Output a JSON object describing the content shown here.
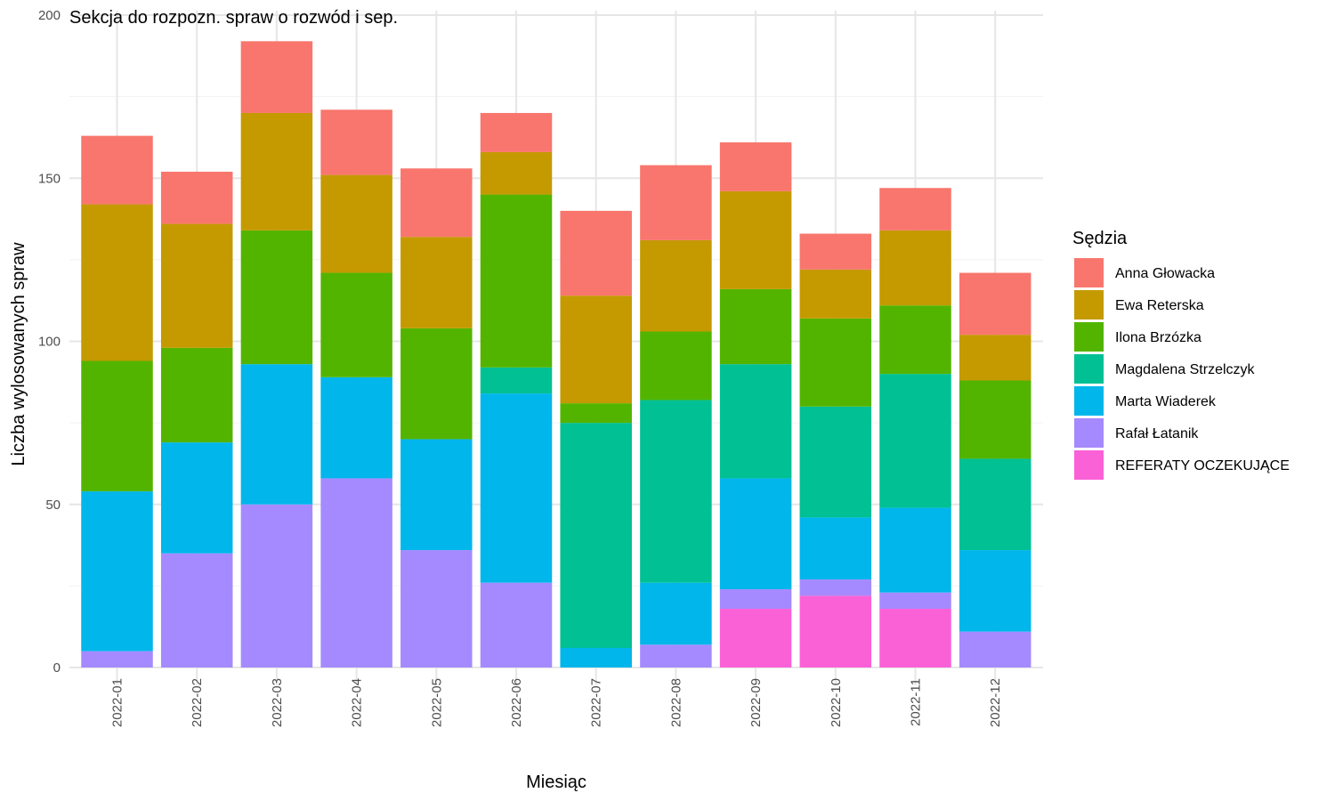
{
  "chart_data": {
    "type": "bar",
    "stacked": true,
    "title": "Sekcja do rozpozn. spraw o rozwód i sep.",
    "xlabel": "Miesiąc",
    "ylabel": "Liczba wylosowanych spraw",
    "ylim": [
      0,
      200
    ],
    "yticks": [
      "0",
      "50",
      "100",
      "150",
      "200"
    ],
    "grid": true,
    "legend": {
      "title": "Sędzia",
      "position": "right"
    },
    "categories": [
      "2022-01",
      "2022-02",
      "2022-03",
      "2022-04",
      "2022-05",
      "2022-06",
      "2022-07",
      "2022-08",
      "2022-09",
      "2022-10",
      "2022-11",
      "2022-12"
    ],
    "series": [
      {
        "name": "Anna Głowacka",
        "color": "#F8766D",
        "values": [
          21,
          16,
          22,
          20,
          21,
          12,
          26,
          23,
          15,
          11,
          13,
          19
        ]
      },
      {
        "name": "Ewa Reterska",
        "color": "#C49A00",
        "values": [
          48,
          38,
          36,
          30,
          28,
          13,
          33,
          28,
          30,
          15,
          23,
          14
        ]
      },
      {
        "name": "Ilona Brzózka",
        "color": "#53B400",
        "values": [
          40,
          29,
          41,
          32,
          34,
          53,
          6,
          21,
          23,
          27,
          21,
          24
        ]
      },
      {
        "name": "Magdalena Strzelczyk",
        "color": "#00C094",
        "values": [
          0,
          0,
          0,
          0,
          0,
          8,
          69,
          56,
          35,
          34,
          41,
          28
        ]
      },
      {
        "name": "Marta Wiaderek",
        "color": "#00B6EB",
        "values": [
          49,
          34,
          43,
          31,
          34,
          58,
          6,
          19,
          34,
          19,
          26,
          25
        ]
      },
      {
        "name": "Rafał Łatanik",
        "color": "#A58AFF",
        "values": [
          5,
          35,
          50,
          58,
          36,
          26,
          0,
          7,
          6,
          5,
          5,
          11
        ]
      },
      {
        "name": "REFERATY OCZEKUJĄCE",
        "color": "#FB61D7",
        "values": [
          0,
          0,
          0,
          0,
          0,
          0,
          0,
          0,
          18,
          22,
          18,
          0
        ]
      }
    ]
  }
}
